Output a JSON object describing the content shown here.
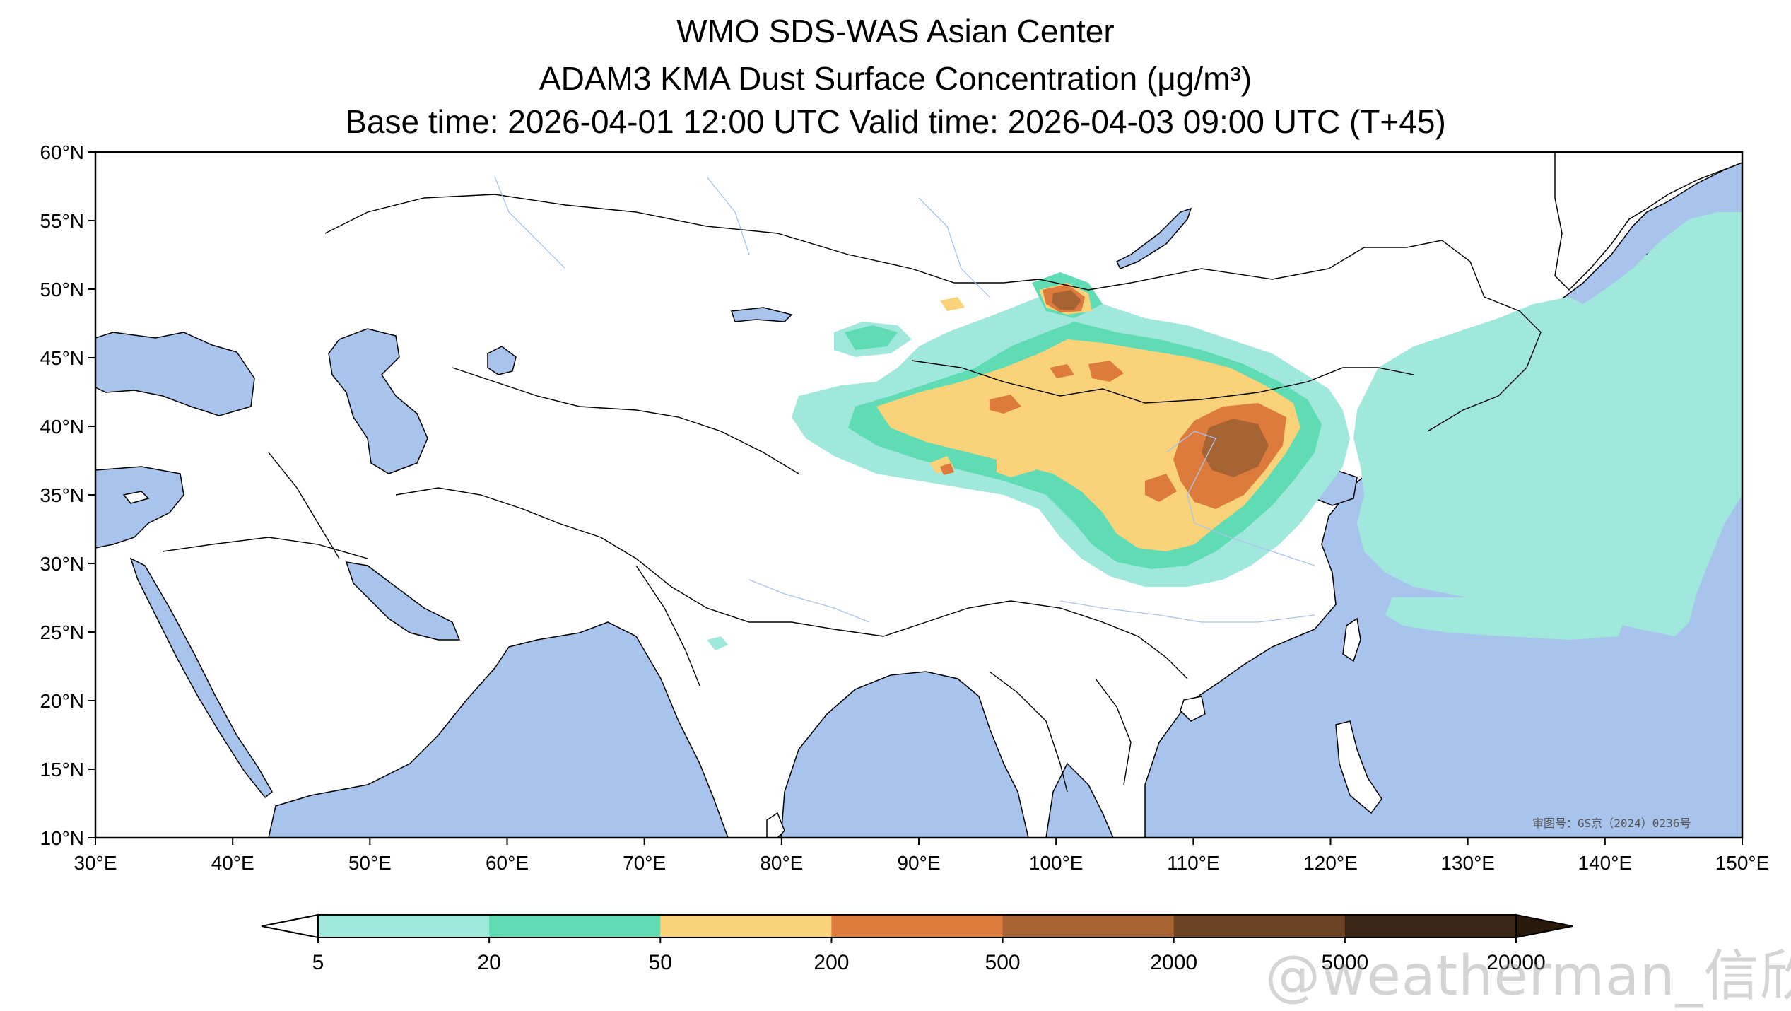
{
  "title": {
    "line1": "WMO SDS-WAS Asian Center",
    "line2": "ADAM3 KMA Dust Surface Concentration (μg/m³)",
    "line3": "Base time: 2026-04-01 12:00 UTC Valid time: 2026-04-03 09:00 UTC (T+45)"
  },
  "map": {
    "extent": {
      "lon_min": 30,
      "lon_max": 150,
      "lat_min": 10,
      "lat_max": 60
    },
    "lat_ticks": [
      "60°N",
      "55°N",
      "50°N",
      "45°N",
      "40°N",
      "35°N",
      "30°N",
      "25°N",
      "20°N",
      "15°N",
      "10°N"
    ],
    "lon_ticks": [
      "30°E",
      "40°E",
      "50°E",
      "60°E",
      "70°E",
      "80°E",
      "90°E",
      "100°E",
      "110°E",
      "120°E",
      "130°E",
      "140°E",
      "150°E"
    ],
    "approval_text": "审图号：GS京（2024）0236号",
    "ocean_color": "#a9c4ec",
    "land_color": "#ffffff"
  },
  "colorbar": {
    "levels": [
      "5",
      "20",
      "50",
      "200",
      "500",
      "2000",
      "5000",
      "20000"
    ],
    "colors": [
      "#a0e8dc",
      "#5fdcb4",
      "#f9d27a",
      "#dd7b3c",
      "#a66434",
      "#6b4322",
      "#3a2716"
    ],
    "extend": "both"
  },
  "watermark": "@weatherman_信欣"
}
